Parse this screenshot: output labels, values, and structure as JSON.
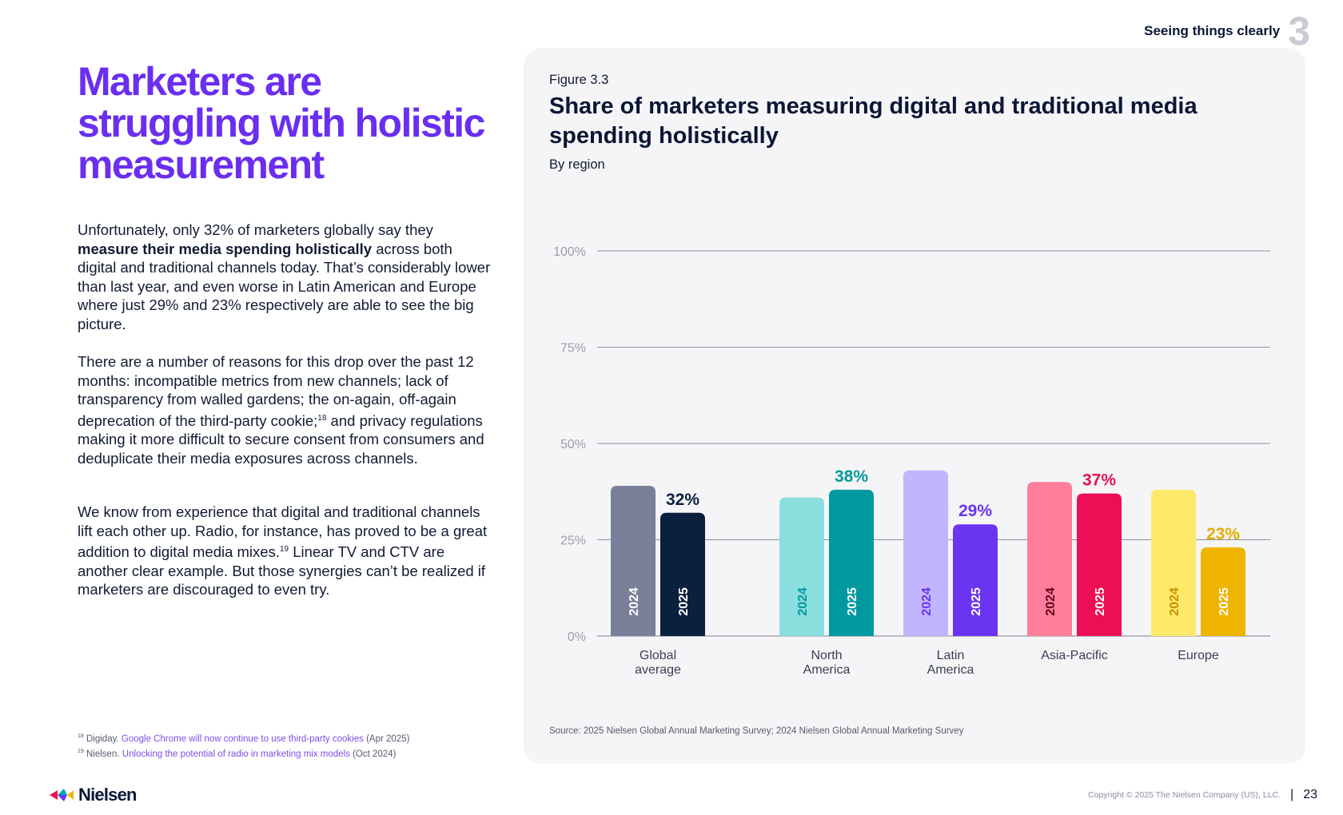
{
  "header": {
    "section_title": "Seeing things clearly",
    "section_number": "3"
  },
  "left": {
    "headline": "Marketers are struggling with holistic measurement",
    "p1": {
      "before": "Unfortunately, only 32% of marketers globally say they ",
      "bold": "measure their media spending holistically",
      "after": " across both digital and traditional channels today. That’s considerably lower than last year, and even worse in Latin American and Europe where just 29% and 23% respectively are able to see the big picture."
    },
    "p2": {
      "before": "There are a number of reasons for this drop over the past 12 months: incompatible metrics from new channels; lack of transparency from walled gardens; the on-again, off-again deprecation of the third-party cookie;",
      "sup": "18",
      "after": " and privacy regulations making it more difficult to secure consent from consumers and deduplicate their media exposures across channels."
    },
    "p3": {
      "before": "We know from experience that digital and traditional channels lift each other up. Radio, for instance, has proved to be a great addition to digital media mixes.",
      "sup": "19",
      "after": " Linear TV and CTV are another clear example. But those synergies can’t be realized if marketers are discouraged to even try."
    }
  },
  "footnotes": [
    {
      "num": "18",
      "source": "Digiday.",
      "link": "Google Chrome will now continue to use third-party cookies",
      "date": "(Apr 2025)"
    },
    {
      "num": "19",
      "source": "Nielsen.",
      "link": "Unlocking the potential of radio in marketing mix models",
      "date": "(Oct 2024)"
    }
  ],
  "figure": {
    "label": "Figure 3.3",
    "title": "Share of marketers measuring digital and traditional media spending holistically",
    "subtitle": "By region",
    "source": "Source: 2025 Nielsen Global Annual Marketing Survey; 2024 Nielsen Global Annual Marketing Survey"
  },
  "chart_data": {
    "type": "bar",
    "categories": [
      "Global average",
      "North America",
      "Latin America",
      "Asia-Pacific",
      "Europe"
    ],
    "series": [
      {
        "name": "2024",
        "values": [
          39,
          36,
          43,
          40,
          38
        ]
      },
      {
        "name": "2025",
        "values": [
          32,
          38,
          29,
          37,
          23
        ]
      }
    ],
    "data_labels_2025": [
      "32%",
      "38%",
      "29%",
      "37%",
      "23%"
    ],
    "colors": {
      "2024": [
        "#7a7f9a",
        "#8adede",
        "#c2b5ff",
        "#ff7f9a",
        "#ffe96a"
      ],
      "2025": [
        "#0b1f3f",
        "#00999f",
        "#6a35f0",
        "#ee0e56",
        "#efb400"
      ],
      "label": [
        "#0b1f3f",
        "#00999f",
        "#6a35f0",
        "#e6134f",
        "#e8ad00"
      ],
      "year_text_2024": [
        "#ffffff",
        "#00999f",
        "#6a35f0",
        "#6b0020",
        "#c79400"
      ]
    },
    "yticks": [
      "0%",
      "25%",
      "50%",
      "75%",
      "100%"
    ],
    "ylim": [
      0,
      100
    ],
    "grid": true
  },
  "footer": {
    "logo": "Nielsen",
    "copyright": "Copyright © 2025 The Nielsen Company (US), LLC.",
    "separator": "|",
    "page": "23"
  }
}
